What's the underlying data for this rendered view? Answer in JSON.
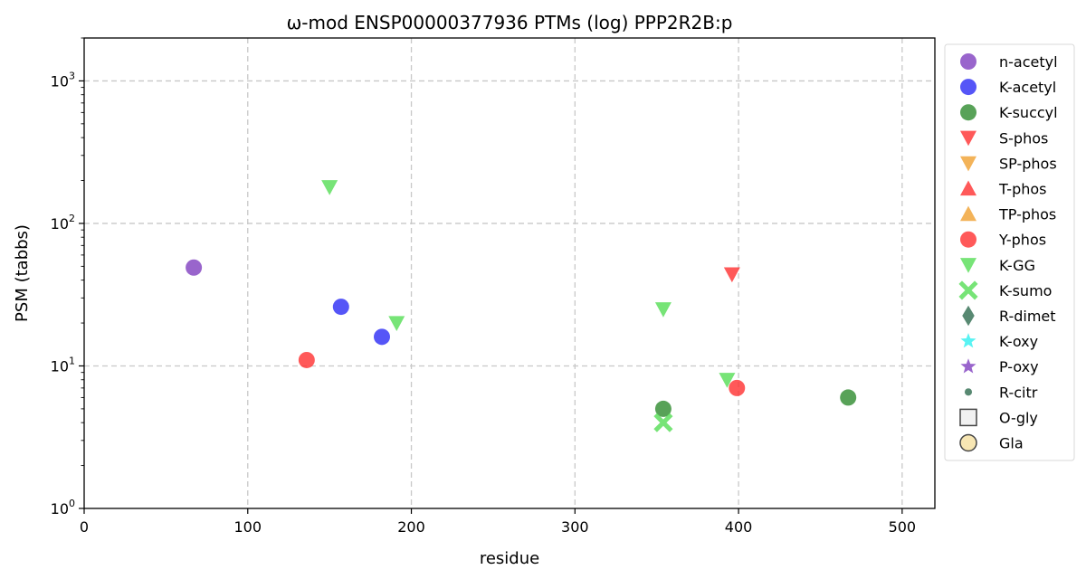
{
  "chart_data": {
    "type": "scatter",
    "title": "ω-mod ENSP00000377936 PTMs (log) PPP2R2B:p",
    "xlabel": "residue",
    "ylabel": "PSM (tabbs)",
    "xlim": [
      0,
      520
    ],
    "ylim": [
      1,
      2000
    ],
    "y_scale": "log",
    "grid": true,
    "legend_position": "outside right",
    "x_ticks": [
      {
        "value": 0,
        "label": "0"
      },
      {
        "value": 100,
        "label": "100"
      },
      {
        "value": 200,
        "label": "200"
      },
      {
        "value": 300,
        "label": "300"
      },
      {
        "value": 400,
        "label": "400"
      },
      {
        "value": 500,
        "label": "500"
      }
    ],
    "y_ticks": [
      {
        "value": 1,
        "base": "10",
        "exp": "0"
      },
      {
        "value": 10,
        "base": "10",
        "exp": "1"
      },
      {
        "value": 100,
        "base": "10",
        "exp": "2"
      },
      {
        "value": 1000,
        "base": "10",
        "exp": "3"
      }
    ],
    "series": [
      {
        "name": "n-acetyl",
        "marker": "circle",
        "color": "#7f3fbf",
        "points": [
          {
            "x": 67,
            "y": 49
          }
        ]
      },
      {
        "name": "K-acetyl",
        "marker": "circle",
        "color": "#2a2af5",
        "points": [
          {
            "x": 157,
            "y": 26
          },
          {
            "x": 182,
            "y": 16
          }
        ]
      },
      {
        "name": "K-succyl",
        "marker": "circle",
        "color": "#2e8b2e",
        "points": [
          {
            "x": 354,
            "y": 5
          },
          {
            "x": 467,
            "y": 6
          }
        ]
      },
      {
        "name": "S-phos",
        "marker": "triangle-down",
        "color": "#ff3030",
        "points": [
          {
            "x": 396,
            "y": 44
          }
        ]
      },
      {
        "name": "SP-phos",
        "marker": "triangle-down",
        "color": "#f0a030",
        "points": []
      },
      {
        "name": "T-phos",
        "marker": "triangle-up",
        "color": "#ff3030",
        "points": []
      },
      {
        "name": "TP-phos",
        "marker": "triangle-up",
        "color": "#f0a030",
        "points": []
      },
      {
        "name": "Y-phos",
        "marker": "circle",
        "color": "#ff3030",
        "points": [
          {
            "x": 136,
            "y": 11
          },
          {
            "x": 399,
            "y": 7
          }
        ]
      },
      {
        "name": "K-GG",
        "marker": "triangle-down",
        "color": "#55dd55",
        "points": [
          {
            "x": 150,
            "y": 180
          },
          {
            "x": 191,
            "y": 20
          },
          {
            "x": 354,
            "y": 25
          },
          {
            "x": 393,
            "y": 8
          }
        ]
      },
      {
        "name": "K-sumo",
        "marker": "x",
        "color": "#55dd55",
        "points": [
          {
            "x": 354,
            "y": 4
          }
        ]
      },
      {
        "name": "R-dimet",
        "marker": "diamond",
        "color": "#2e6b4f",
        "points": []
      },
      {
        "name": "K-oxy",
        "marker": "star",
        "color": "#30f0f0",
        "points": []
      },
      {
        "name": "P-oxy",
        "marker": "star",
        "color": "#7f3fbf",
        "points": []
      },
      {
        "name": "R-citr",
        "marker": "small-circle",
        "color": "#2e6b4f",
        "points": []
      },
      {
        "name": "O-gly",
        "marker": "square-open",
        "color": "#eeeeee",
        "points": []
      },
      {
        "name": "Gla",
        "marker": "circle-open",
        "color": "#f5e0a0",
        "points": []
      }
    ]
  }
}
